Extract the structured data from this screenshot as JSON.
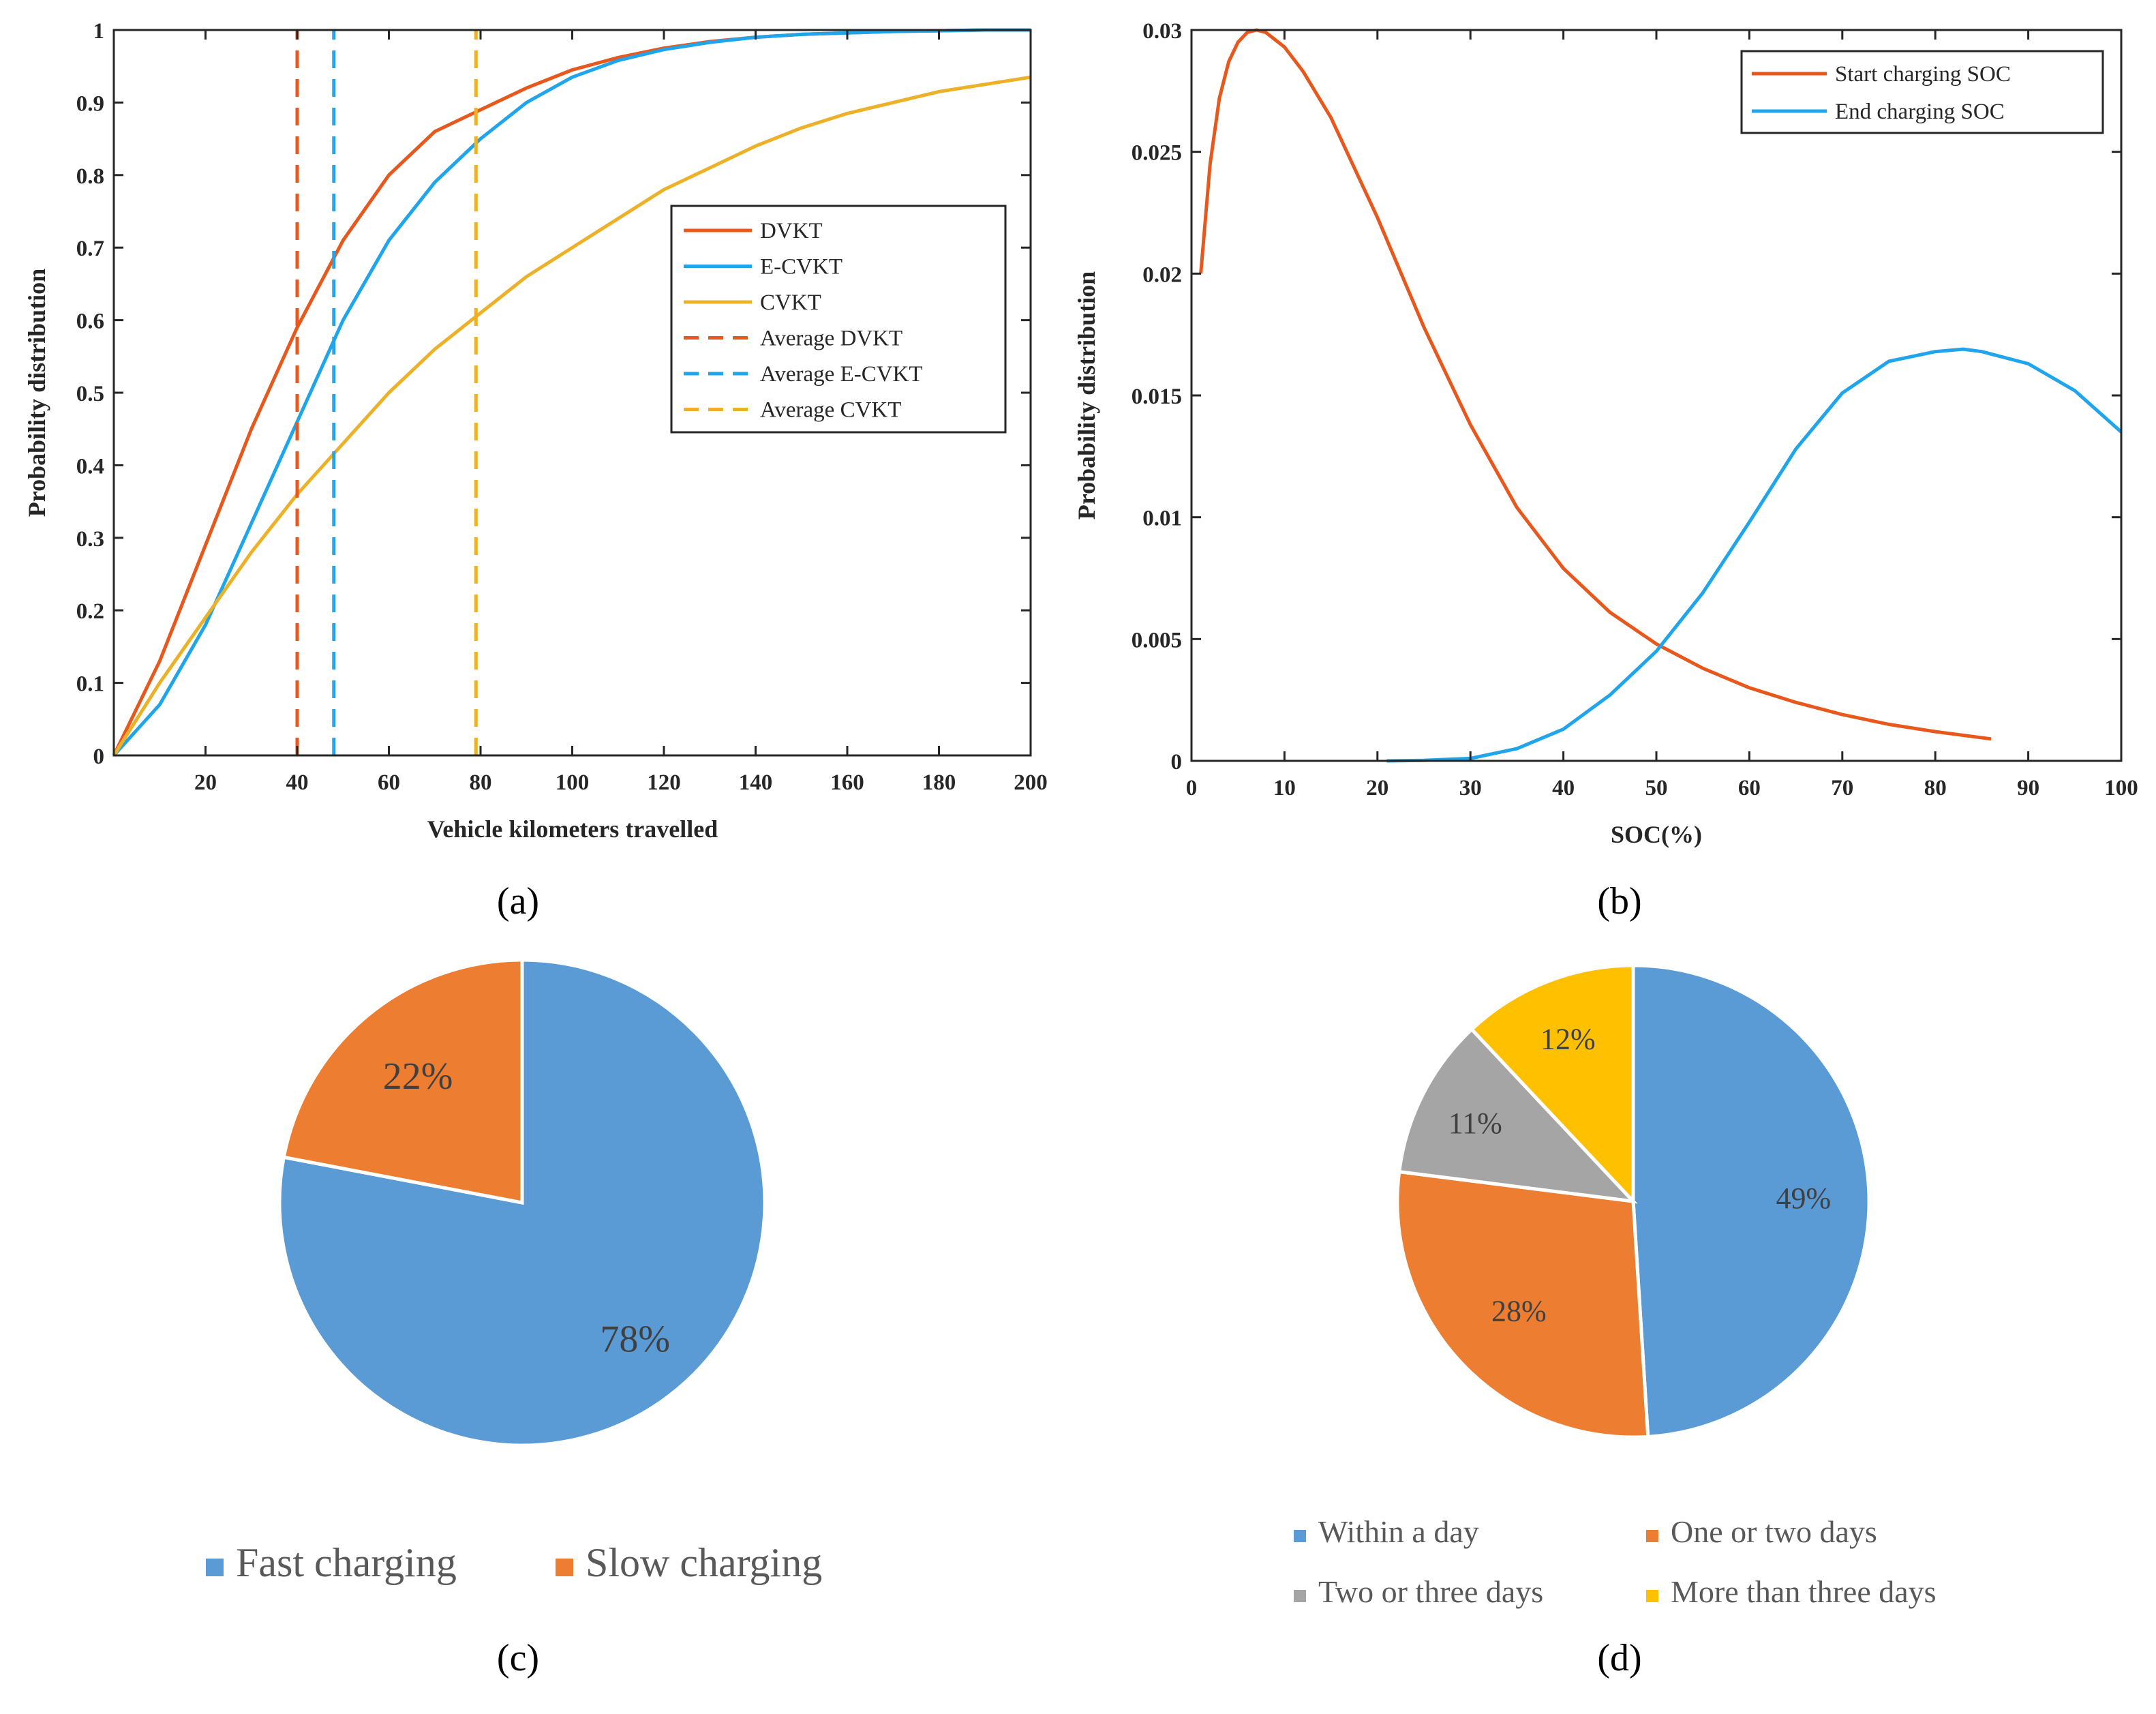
{
  "colors": {
    "orange_line": "#E8581C",
    "blue_line": "#1EA5EC",
    "gold_line": "#EDB128",
    "pie_blue": "#5B9BD5",
    "pie_orange": "#ED7D31",
    "pie_gray": "#A5A5A5",
    "pie_yellow": "#FFC000"
  },
  "chart_data": [
    {
      "id": "a",
      "type": "line",
      "caption": "(a)",
      "xlabel": "Vehicle kilometers travelled",
      "ylabel": "Probability distribution",
      "xlim": [
        0,
        200
      ],
      "ylim": [
        0,
        1
      ],
      "xticks": [
        20,
        40,
        60,
        80,
        100,
        120,
        140,
        160,
        180,
        200
      ],
      "yticks": [
        0,
        0.1,
        0.2,
        0.3,
        0.4,
        0.5,
        0.6,
        0.7,
        0.8,
        0.9,
        1
      ],
      "xtick_labels": [
        "20",
        "40",
        "60",
        "80",
        "100",
        "120",
        "140",
        "160",
        "180",
        "200"
      ],
      "ytick_labels": [
        "0",
        "0.1",
        "0.2",
        "0.3",
        "0.4",
        "0.5",
        "0.6",
        "0.7",
        "0.8",
        "0.9",
        "1"
      ],
      "legend_position": "center-right",
      "series": [
        {
          "name": "DVKT",
          "color": "#E8581C",
          "style": "solid",
          "x": [
            0,
            10,
            20,
            30,
            40,
            50,
            60,
            70,
            80,
            90,
            100,
            110,
            120,
            130,
            140,
            150,
            160,
            170,
            180,
            190,
            200
          ],
          "y": [
            0.0,
            0.13,
            0.29,
            0.45,
            0.59,
            0.71,
            0.8,
            0.86,
            0.89,
            0.92,
            0.945,
            0.962,
            0.975,
            0.984,
            0.99,
            0.994,
            0.996,
            0.998,
            0.999,
            1.0,
            1.0
          ]
        },
        {
          "name": "E-CVKT",
          "color": "#1EA5EC",
          "style": "solid",
          "x": [
            0,
            10,
            20,
            30,
            40,
            50,
            60,
            70,
            80,
            90,
            100,
            110,
            120,
            130,
            140,
            150,
            160,
            170,
            180,
            190,
            200
          ],
          "y": [
            0.0,
            0.07,
            0.18,
            0.32,
            0.46,
            0.6,
            0.71,
            0.79,
            0.85,
            0.9,
            0.935,
            0.958,
            0.973,
            0.983,
            0.99,
            0.994,
            0.996,
            0.998,
            0.999,
            1.0,
            1.0
          ]
        },
        {
          "name": "CVKT",
          "color": "#EDB128",
          "style": "solid",
          "x": [
            0,
            10,
            20,
            30,
            40,
            50,
            60,
            70,
            80,
            90,
            100,
            110,
            120,
            130,
            140,
            150,
            160,
            170,
            180,
            190,
            200
          ],
          "y": [
            0.0,
            0.1,
            0.19,
            0.28,
            0.36,
            0.43,
            0.5,
            0.56,
            0.61,
            0.66,
            0.7,
            0.74,
            0.78,
            0.81,
            0.84,
            0.865,
            0.885,
            0.9,
            0.915,
            0.925,
            0.935
          ]
        },
        {
          "name": "Average DVKT",
          "color": "#E8581C",
          "style": "dashed",
          "x": [
            40,
            40
          ],
          "y": [
            0,
            1
          ]
        },
        {
          "name": "Average E-CVKT",
          "color": "#1EA5EC",
          "style": "dashed",
          "x": [
            48,
            48
          ],
          "y": [
            0,
            1
          ]
        },
        {
          "name": "Average CVKT",
          "color": "#EDB128",
          "style": "dashed",
          "x": [
            79,
            79
          ],
          "y": [
            0,
            1
          ]
        }
      ]
    },
    {
      "id": "b",
      "type": "line",
      "caption": "(b)",
      "xlabel": "SOC(%)",
      "ylabel": "Probability distribution",
      "xlim": [
        0,
        100
      ],
      "ylim": [
        0,
        0.03
      ],
      "xticks": [
        0,
        10,
        20,
        30,
        40,
        50,
        60,
        70,
        80,
        90,
        100
      ],
      "yticks": [
        0,
        0.005,
        0.01,
        0.015,
        0.02,
        0.025,
        0.03
      ],
      "xtick_labels": [
        "0",
        "10",
        "20",
        "30",
        "40",
        "50",
        "60",
        "70",
        "80",
        "90",
        "100"
      ],
      "ytick_labels": [
        "0",
        "0.005",
        "0.01",
        "0.015",
        "0.02",
        "0.025",
        "0.03"
      ],
      "legend_position": "top-right",
      "series": [
        {
          "name": "Start charging SOC",
          "color": "#E8581C",
          "style": "solid",
          "x": [
            1,
            2,
            3,
            4,
            5,
            6,
            7,
            8,
            10,
            12,
            15,
            20,
            25,
            30,
            35,
            40,
            45,
            50,
            55,
            60,
            65,
            70,
            75,
            80,
            86
          ],
          "y": [
            0.02,
            0.0245,
            0.0272,
            0.0287,
            0.0295,
            0.0299,
            0.03,
            0.0299,
            0.0293,
            0.0283,
            0.0264,
            0.0223,
            0.0178,
            0.0138,
            0.0104,
            0.0079,
            0.0061,
            0.0048,
            0.0038,
            0.003,
            0.0024,
            0.0019,
            0.0015,
            0.0012,
            0.0009
          ]
        },
        {
          "name": "End charging SOC",
          "color": "#1EA5EC",
          "style": "solid",
          "x": [
            21,
            25,
            30,
            35,
            40,
            45,
            50,
            55,
            60,
            65,
            70,
            75,
            80,
            83,
            85,
            90,
            95,
            100
          ],
          "y": [
            0.0,
            2e-05,
            0.0001,
            0.0005,
            0.0013,
            0.0027,
            0.0045,
            0.0069,
            0.0098,
            0.0128,
            0.0151,
            0.0164,
            0.0168,
            0.0169,
            0.0168,
            0.0163,
            0.0152,
            0.0135
          ]
        }
      ]
    },
    {
      "id": "c",
      "type": "pie",
      "caption": "(c)",
      "slices": [
        {
          "label": "Fast charging",
          "value": 78,
          "display": "78%",
          "color": "#5B9BD5"
        },
        {
          "label": "Slow charging",
          "value": 22,
          "display": "22%",
          "color": "#ED7D31"
        }
      ]
    },
    {
      "id": "d",
      "type": "pie",
      "caption": "(d)",
      "slices": [
        {
          "label": "Within a day",
          "value": 49,
          "display": "49%",
          "color": "#5B9BD5"
        },
        {
          "label": "One or two days",
          "value": 28,
          "display": "28%",
          "color": "#ED7D31"
        },
        {
          "label": "Two or three days",
          "value": 11,
          "display": "11%",
          "color": "#A5A5A5"
        },
        {
          "label": "More than three days",
          "value": 12,
          "display": "12%",
          "color": "#FFC000"
        }
      ]
    }
  ]
}
